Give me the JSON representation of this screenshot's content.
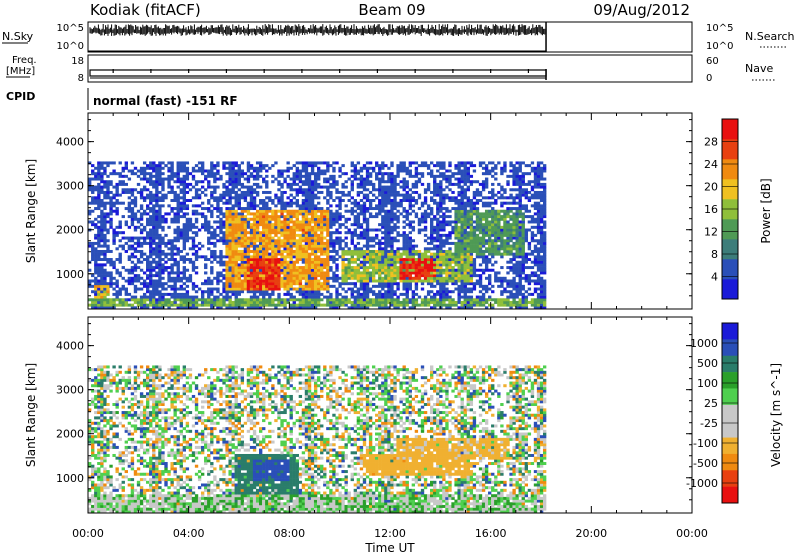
{
  "header": {
    "title_left": "Kodiak (fitACF)",
    "title_center": "Beam 09",
    "title_right": "09/Aug/2012"
  },
  "panels": {
    "nsky_label": "N.Sky",
    "nsky_ticks": [
      "10^5",
      "10^0"
    ],
    "nsearch_label": "N.Search",
    "nsearch_ticks": [
      "10^5",
      "10^0"
    ],
    "freq_label_1": "Freq.",
    "freq_label_2": "[MHz]",
    "freq_ticks": [
      "18",
      "8"
    ],
    "nave_label": "Nave",
    "nave_ticks": [
      "60",
      "0"
    ],
    "cpid_label": "CPID",
    "cpid_text": "normal (fast) -151 RF"
  },
  "colors": {
    "power_scale": [
      "#1a1ad8",
      "#2a4fb8",
      "#3d7d7a",
      "#4f9a55",
      "#8fbf3a",
      "#f0c020",
      "#f08a10",
      "#e84010",
      "#e81010"
    ],
    "velocity_scale": [
      "#e81010",
      "#e84010",
      "#f08a10",
      "#f0b030",
      "#c8c8c8",
      "#c8c8c8",
      "#4fd04f",
      "#2aa02a",
      "#2a7d6a",
      "#2a4fb8",
      "#1a1ad8"
    ]
  },
  "chart_data": [
    {
      "type": "heatmap",
      "title": "",
      "xlabel": "",
      "ylabel": "Slant Range [km]",
      "x_ticks": [
        "00:00",
        "04:00",
        "08:00",
        "12:00",
        "16:00",
        "20:00",
        "00:00"
      ],
      "xlim_hours": [
        0,
        24
      ],
      "y_ticks": [
        "1000",
        "2000",
        "3000",
        "4000"
      ],
      "ylim": [
        200,
        4650
      ],
      "data_xrange_hours": [
        0,
        18.2
      ],
      "data_yrange_km": [
        200,
        3550
      ],
      "colorbar_label": "Power [dB]",
      "colorbar_ticks": [
        "4",
        "8",
        "12",
        "16",
        "20",
        "24",
        "28"
      ],
      "colorbar_range": [
        0,
        32
      ],
      "background_level": 3,
      "echo_regions": [
        {
          "t": [
            5.4,
            9.5
          ],
          "r": [
            600,
            2400
          ],
          "level": 22
        },
        {
          "t": [
            6.3,
            7.6
          ],
          "r": [
            600,
            1300
          ],
          "level": 29
        },
        {
          "t": [
            10.0,
            15.2
          ],
          "r": [
            800,
            1500
          ],
          "level": 16
        },
        {
          "t": [
            12.3,
            13.8
          ],
          "r": [
            850,
            1300
          ],
          "level": 29
        },
        {
          "t": [
            14.5,
            17.3
          ],
          "r": [
            1400,
            2400
          ],
          "level": 12
        },
        {
          "t": [
            0.2,
            0.8
          ],
          "r": [
            350,
            700
          ],
          "level": 20
        },
        {
          "t": [
            0.0,
            18.2
          ],
          "r": [
            250,
            400
          ],
          "level": 14
        }
      ]
    },
    {
      "type": "heatmap",
      "title": "",
      "xlabel": "Time UT",
      "ylabel": "Slant Range [km]",
      "x_ticks": [
        "00:00",
        "04:00",
        "08:00",
        "12:00",
        "16:00",
        "20:00",
        "00:00"
      ],
      "xlim_hours": [
        0,
        24
      ],
      "y_ticks": [
        "1000",
        "2000",
        "3000",
        "4000"
      ],
      "ylim": [
        200,
        4650
      ],
      "data_xrange_hours": [
        0,
        18.2
      ],
      "data_yrange_km": [
        200,
        3550
      ],
      "colorbar_label": "Velocity [m s^-1]",
      "colorbar_ticks": [
        "1000",
        "500",
        "100",
        "25",
        "-25",
        "-100",
        "-500",
        "-1000"
      ],
      "echo_regions": [
        {
          "t": [
            5.8,
            8.3
          ],
          "r": [
            600,
            1500
          ],
          "level": 300
        },
        {
          "t": [
            6.5,
            8.0
          ],
          "r": [
            900,
            1400
          ],
          "level": 700
        },
        {
          "t": [
            10.8,
            15.2
          ],
          "r": [
            1000,
            1500
          ],
          "level": -200
        },
        {
          "t": [
            12.2,
            16.7
          ],
          "r": [
            1400,
            1900
          ],
          "level": -150
        },
        {
          "t": [
            0.0,
            18.2
          ],
          "r": [
            200,
            600
          ],
          "level": 0
        }
      ]
    }
  ]
}
